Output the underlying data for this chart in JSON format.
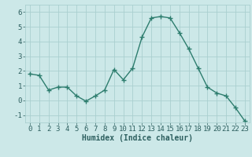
{
  "x": [
    0,
    1,
    2,
    3,
    4,
    5,
    6,
    7,
    8,
    9,
    10,
    11,
    12,
    13,
    14,
    15,
    16,
    17,
    18,
    19,
    20,
    21,
    22,
    23
  ],
  "y": [
    1.8,
    1.7,
    0.7,
    0.9,
    0.9,
    0.3,
    -0.05,
    0.3,
    0.7,
    2.1,
    1.4,
    2.2,
    4.3,
    5.6,
    5.7,
    5.6,
    4.6,
    3.5,
    2.2,
    0.9,
    0.5,
    0.3,
    -0.5,
    -1.4
  ],
  "line_color": "#2d7d6e",
  "marker": "+",
  "markersize": 4,
  "linewidth": 1.0,
  "bg_color": "#cce8e8",
  "grid_color": "#aacfcf",
  "xlabel": "Humidex (Indice chaleur)",
  "xlim": [
    -0.5,
    23.5
  ],
  "ylim": [
    -1.5,
    6.5
  ],
  "yticks": [
    -1,
    0,
    1,
    2,
    3,
    4,
    5,
    6
  ],
  "xticks": [
    0,
    1,
    2,
    3,
    4,
    5,
    6,
    7,
    8,
    9,
    10,
    11,
    12,
    13,
    14,
    15,
    16,
    17,
    18,
    19,
    20,
    21,
    22,
    23
  ],
  "xlabel_fontsize": 7,
  "tick_fontsize": 6.5,
  "ylabel_fontsize": 7
}
